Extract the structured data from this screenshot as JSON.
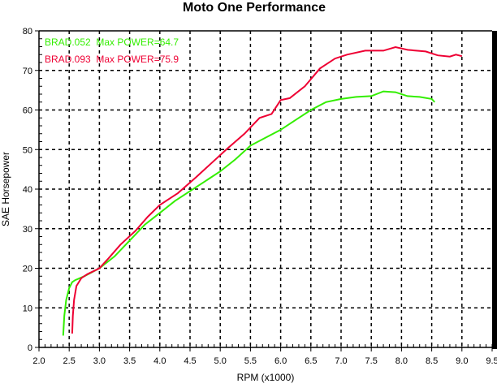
{
  "chart_data": {
    "type": "line",
    "title": "Moto One Performance",
    "xlabel": "RPM (x1000)",
    "ylabel": "SAE Horsepower",
    "xlim": [
      2.0,
      9.5
    ],
    "ylim": [
      0,
      80
    ],
    "xticks": [
      "2.0",
      "2.5",
      "3.0",
      "3.5",
      "4.0",
      "4.5",
      "5.0",
      "5.5",
      "6.0",
      "6.5",
      "7.0",
      "7.5",
      "8.0",
      "8.5",
      "9.0",
      "9.5"
    ],
    "yticks": [
      "0",
      "10",
      "20",
      "30",
      "40",
      "50",
      "60",
      "70",
      "80"
    ],
    "grid": true,
    "legend_position": "top-left",
    "series": [
      {
        "name": "BRAD.052",
        "legend_text": "BRAD.052  Max POWER=64.7",
        "color": "#33ee00",
        "x": [
          2.4,
          2.42,
          2.45,
          2.5,
          2.55,
          2.6,
          2.75,
          3.0,
          3.25,
          3.5,
          3.75,
          4.0,
          4.25,
          4.5,
          4.75,
          5.0,
          5.25,
          5.5,
          5.75,
          6.0,
          6.25,
          6.5,
          6.75,
          7.0,
          7.25,
          7.5,
          7.7,
          7.9,
          8.1,
          8.3,
          8.5,
          8.55
        ],
        "y": [
          3,
          8,
          12,
          15,
          16.5,
          17,
          18,
          20,
          23,
          27,
          31,
          34,
          37,
          39.5,
          42,
          44.5,
          47.5,
          51,
          53,
          55,
          57.5,
          60,
          62,
          62.8,
          63.3,
          63.5,
          64.7,
          64.5,
          63.5,
          63.3,
          62.8,
          62
        ]
      },
      {
        "name": "BRAD.093",
        "legend_text": "BRAD.093  Max POWER=75.9",
        "color": "#ee0033",
        "x": [
          2.55,
          2.56,
          2.58,
          2.62,
          2.7,
          2.8,
          3.0,
          3.15,
          3.35,
          3.6,
          3.8,
          4.0,
          4.3,
          4.6,
          4.85,
          5.1,
          5.4,
          5.65,
          5.85,
          6.0,
          6.15,
          6.4,
          6.65,
          6.9,
          7.1,
          7.4,
          7.7,
          7.9,
          8.1,
          8.4,
          8.6,
          8.8,
          8.9,
          9.0
        ],
        "y": [
          3.5,
          8,
          12,
          15.5,
          17.5,
          18.5,
          20,
          22.5,
          26,
          29.5,
          33,
          36,
          39,
          43,
          46.5,
          50,
          54,
          58,
          59,
          62.5,
          63,
          66,
          70.5,
          73,
          74,
          75,
          75,
          75.9,
          75.2,
          74.8,
          73.8,
          73.5,
          74,
          73.6
        ]
      }
    ]
  }
}
